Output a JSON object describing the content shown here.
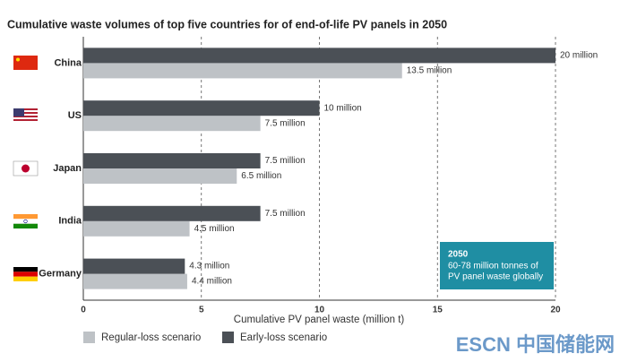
{
  "chart_data": {
    "type": "hbar",
    "title": "Cumulative waste volumes of top five countries for of end-of-life PV panels in 2050",
    "x_label": "Cumulative PV panel waste (million t)",
    "categories": [
      "China",
      "US",
      "Japan",
      "India",
      "Germany"
    ],
    "series": [
      {
        "name": "Regular-loss scenario",
        "color": "#bec2c6",
        "values": [
          13.5,
          7.5,
          6.5,
          4.5,
          4.4
        ],
        "value_labels": [
          "13.5 million",
          "7.5 million",
          "6.5 million",
          "4.5 million",
          "4.4 million"
        ]
      },
      {
        "name": "Early-loss scenario",
        "color": "#4b5056",
        "values": [
          20,
          10,
          7.5,
          7.5,
          4.3
        ],
        "value_labels": [
          "20 million",
          "10 million",
          "7.5 million",
          "7.5 million",
          "4.3 million"
        ]
      }
    ],
    "xlim": [
      0,
      20
    ],
    "xticks": [
      0,
      5,
      10,
      15,
      20
    ],
    "grid": true,
    "annotation": {
      "title": "2050",
      "lines": [
        "60-78 million tonnes of",
        "PV panel waste globally"
      ]
    },
    "watermark": "ESCN 中国储能网"
  }
}
